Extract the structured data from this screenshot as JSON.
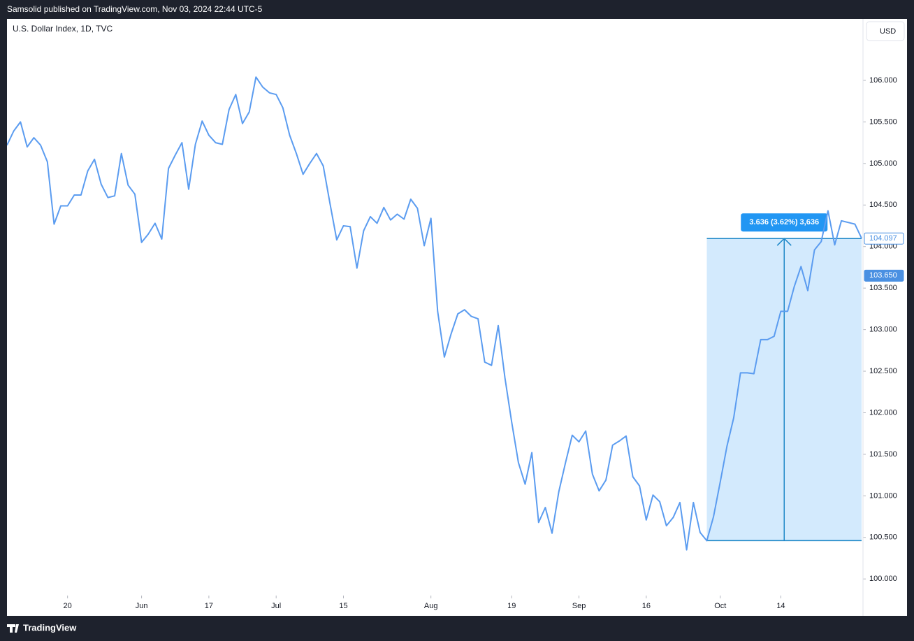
{
  "header": {
    "publisher": "Samsolid published on TradingView.com, Nov 03, 2024 22:44 UTC-5"
  },
  "footer": {
    "brand": "TradingView"
  },
  "chart_data": {
    "type": "line",
    "title": "U.S. Dollar Index, 1D, TVC",
    "currency": "USD",
    "color": "#5b9cf0",
    "values": [
      105.22,
      105.39,
      105.5,
      105.2,
      105.31,
      105.22,
      105.02,
      104.27,
      104.49,
      104.49,
      104.62,
      104.62,
      104.91,
      105.05,
      104.75,
      104.59,
      104.61,
      105.12,
      104.74,
      104.63,
      104.05,
      104.15,
      104.28,
      104.09,
      104.94,
      105.1,
      105.25,
      104.69,
      105.23,
      105.51,
      105.34,
      105.25,
      105.23,
      105.65,
      105.83,
      105.48,
      105.62,
      106.04,
      105.92,
      105.85,
      105.83,
      105.67,
      105.34,
      105.12,
      104.87,
      105.0,
      105.12,
      104.97,
      104.52,
      104.08,
      104.25,
      104.24,
      103.74,
      104.19,
      104.36,
      104.28,
      104.47,
      104.32,
      104.39,
      104.33,
      104.57,
      104.46,
      104.01,
      104.34,
      103.22,
      102.67,
      102.95,
      103.19,
      103.24,
      103.16,
      103.13,
      102.61,
      102.57,
      103.05,
      102.42,
      101.89,
      101.4,
      101.14,
      101.52,
      100.68,
      100.86,
      100.55,
      101.05,
      101.4,
      101.73,
      101.65,
      101.78,
      101.26,
      101.06,
      101.19,
      101.61,
      101.66,
      101.72,
      101.23,
      101.12,
      100.71,
      101.01,
      100.93,
      100.64,
      100.74,
      100.92,
      100.35,
      100.92,
      100.56,
      100.46,
      100.75,
      101.17,
      101.6,
      101.94,
      102.48,
      102.48,
      102.47,
      102.88,
      102.88,
      102.92,
      103.22,
      103.22,
      103.52,
      103.76,
      103.47,
      103.96,
      104.06,
      104.43,
      104.02,
      104.31,
      104.29,
      104.27,
      104.1
    ],
    "xlim": [
      0,
      127
    ],
    "xticks": [
      {
        "value": 9,
        "label": "20"
      },
      {
        "value": 20,
        "label": "Jun"
      },
      {
        "value": 30,
        "label": "17"
      },
      {
        "value": 40,
        "label": "Jul"
      },
      {
        "value": 50,
        "label": "15"
      },
      {
        "value": 63,
        "label": "Aug"
      },
      {
        "value": 75,
        "label": "19"
      },
      {
        "value": 85,
        "label": "Sep"
      },
      {
        "value": 95,
        "label": "16"
      },
      {
        "value": 106,
        "label": "Oct"
      },
      {
        "value": 115,
        "label": "14"
      }
    ],
    "ylim": [
      99.8,
      106.74
    ],
    "yticks": [
      {
        "value": 100,
        "label": "100.000"
      },
      {
        "value": 100.5,
        "label": "100.500"
      },
      {
        "value": 101,
        "label": "101.000"
      },
      {
        "value": 101.5,
        "label": "101.500"
      },
      {
        "value": 102,
        "label": "102.000"
      },
      {
        "value": 102.5,
        "label": "102.500"
      },
      {
        "value": 103,
        "label": "103.000"
      },
      {
        "value": 103.5,
        "label": "103.500"
      },
      {
        "value": 104,
        "label": "104.000"
      },
      {
        "value": 104.5,
        "label": "104.500"
      },
      {
        "value": 105,
        "label": "105.000"
      },
      {
        "value": 105.5,
        "label": "105.500"
      },
      {
        "value": 106,
        "label": "106.000"
      }
    ],
    "price_labels": [
      {
        "value": 103.65,
        "label": "103.650",
        "color": "#4a90e2",
        "filled": true
      },
      {
        "value": 104.097,
        "label": "104.097",
        "color": "#4a90e2",
        "filled": false
      }
    ],
    "measure": {
      "from_index": 104,
      "to_index": 127,
      "from": 100.461,
      "to": 104.097,
      "label": "3.636 (3.62%) 3,636",
      "color": "#2196f3"
    }
  }
}
